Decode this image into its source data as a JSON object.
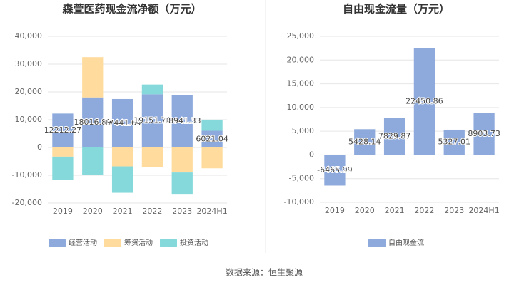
{
  "chart_data": [
    {
      "type": "stacked-bar",
      "title": "森萱医药现金流净额（万元）",
      "categories": [
        "2019",
        "2020",
        "2021",
        "2022",
        "2023",
        "2024H1"
      ],
      "series": [
        {
          "name": "经营活动",
          "color": "#8eaadc",
          "values": [
            12212.27,
            18016.89,
            17441.64,
            19151.76,
            18941.33,
            6021.04
          ],
          "labeled": true
        },
        {
          "name": "筹资活动",
          "color": "#ffdc9e",
          "values": [
            -3300,
            14500,
            -6800,
            -7000,
            -9000,
            -7500
          ]
        },
        {
          "name": "投资活动",
          "color": "#85d9da",
          "values": [
            -8300,
            -9800,
            -9500,
            3500,
            -7700,
            4000
          ]
        }
      ],
      "ylim": [
        -20000,
        40000
      ],
      "yticks": [
        {
          "value": -20000,
          "label": "-20,000"
        },
        {
          "value": -10000,
          "label": "-10,000"
        },
        0,
        {
          "value": 10000,
          "label": "10,000"
        },
        {
          "value": 20000,
          "label": "20,000"
        },
        {
          "value": 30000,
          "label": "30,000"
        },
        {
          "value": 40000,
          "label": "40,000"
        }
      ],
      "grid": true
    },
    {
      "type": "bar",
      "title": "自由现金流量（万元）",
      "categories": [
        "2019",
        "2020",
        "2021",
        "2022",
        "2023",
        "2024H1"
      ],
      "series": [
        {
          "name": "自由现金流",
          "color": "#8eaadc",
          "values": [
            -6465.99,
            5428.14,
            7829.87,
            22450.86,
            5327.01,
            8903.73
          ],
          "labeled": true
        }
      ],
      "ylim": [
        -10000,
        25000
      ],
      "yticks": [
        {
          "value": -10000,
          "label": "-10,000"
        },
        {
          "value": -5000,
          "label": "-5,000"
        },
        0,
        {
          "value": 5000,
          "label": "5,000"
        },
        {
          "value": 10000,
          "label": "10,000"
        },
        {
          "value": 15000,
          "label": "15,000"
        },
        {
          "value": 20000,
          "label": "20,000"
        },
        {
          "value": 25000,
          "label": "25,000"
        }
      ],
      "grid": true
    }
  ],
  "source": "数据来源：恒生聚源"
}
